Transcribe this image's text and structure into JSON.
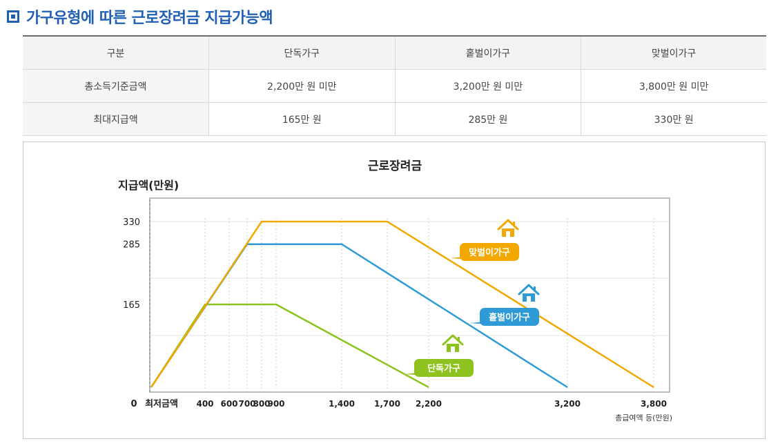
{
  "header": {
    "title": "가구유형에 따른 근로장려금 지급가능액"
  },
  "table": {
    "headers": [
      "구분",
      "단독가구",
      "홑벌이가구",
      "맞벌이가구"
    ],
    "rows": [
      {
        "label": "총소득기준금액",
        "values": [
          "2,200만 원 미만",
          "3,200만 원 미만",
          "3,800만 원 미만"
        ]
      },
      {
        "label": "최대지급액",
        "values": [
          "165만 원",
          "285만 원",
          "330만 원"
        ]
      }
    ]
  },
  "chart_data": {
    "type": "line",
    "title": "근로장려금",
    "ylabel": "지급액(만원)",
    "xlabel": "총급여액 등(만원)",
    "origin_label": "0",
    "min_wage_label": "최저금액",
    "x_ticks": [
      400,
      600,
      700,
      800,
      900,
      1400,
      1700,
      2200,
      3200,
      3800
    ],
    "x_tick_labels": [
      "400",
      "600",
      "700",
      "800",
      "900",
      "1,400",
      "1,700",
      "2,200",
      "3,200",
      "3,800"
    ],
    "y_ticks": [
      165,
      285,
      330
    ],
    "y_tick_labels": [
      "165",
      "285",
      "330"
    ],
    "xlim": [
      0,
      3800
    ],
    "ylim": [
      0,
      330
    ],
    "grid": true,
    "series": [
      {
        "name": "맞벌이가구",
        "color": "#f2a800",
        "icon": "house-icon",
        "x": [
          0,
          800,
          1700,
          3800
        ],
        "y": [
          0,
          330,
          330,
          0
        ]
      },
      {
        "name": "홑벌이가구",
        "color": "#2f9bd6",
        "icon": "house-icon",
        "x": [
          0,
          700,
          1400,
          3200
        ],
        "y": [
          0,
          285,
          285,
          0
        ]
      },
      {
        "name": "단독가구",
        "color": "#8dc21f",
        "icon": "house-icon",
        "x": [
          0,
          400,
          900,
          2200
        ],
        "y": [
          0,
          165,
          165,
          0
        ]
      }
    ]
  }
}
